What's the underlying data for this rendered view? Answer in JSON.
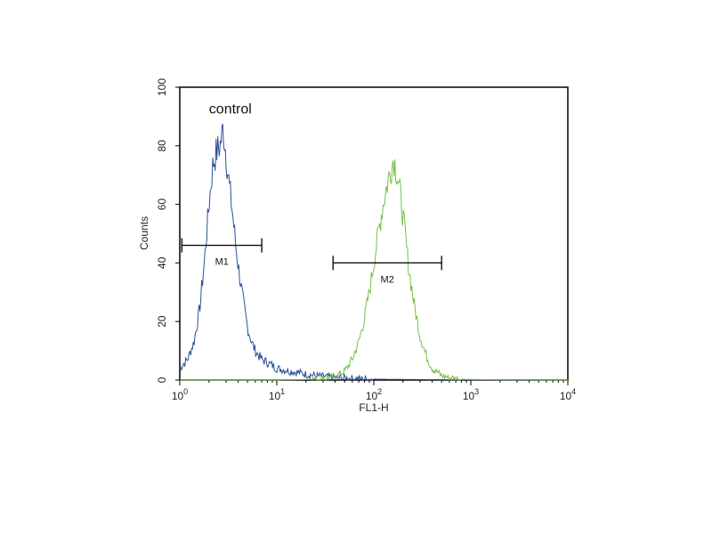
{
  "chart_data": {
    "type": "line",
    "title": "",
    "xlabel": "FL1-H",
    "ylabel": "Counts",
    "x_scale": "log",
    "xlim": [
      1,
      10000
    ],
    "ylim": [
      0,
      100
    ],
    "grid": false,
    "legend": "none",
    "x_tick_labels": [
      {
        "base": "10",
        "exp": "0",
        "value": 1
      },
      {
        "base": "10",
        "exp": "1",
        "value": 10
      },
      {
        "base": "10",
        "exp": "2",
        "value": 100
      },
      {
        "base": "10",
        "exp": "3",
        "value": 1000
      },
      {
        "base": "10",
        "exp": "4",
        "value": 10000
      }
    ],
    "y_ticks": [
      0,
      20,
      40,
      60,
      80,
      100
    ],
    "annotations": [
      {
        "text": "control",
        "x": 2.0,
        "y": 91
      }
    ],
    "series": [
      {
        "color": "#2b4f96",
        "x": [
          1.0,
          1.2,
          1.4,
          1.6,
          1.8,
          2.0,
          2.2,
          2.4,
          2.6,
          2.8,
          3.0,
          3.2,
          3.5,
          3.8,
          4.2,
          4.6,
          5.0,
          5.5,
          6.0,
          7.0,
          8.0,
          9.0,
          10,
          12,
          14,
          17,
          20,
          25,
          30,
          40,
          60,
          100,
          200,
          500,
          1000,
          2000,
          10000
        ],
        "values": [
          4,
          7,
          13,
          24,
          41,
          60,
          74,
          78,
          80,
          86,
          77,
          68,
          57,
          45,
          34,
          25,
          18,
          13,
          10,
          7,
          6,
          5,
          4,
          3.5,
          3,
          2.5,
          2,
          1.5,
          1.2,
          0.8,
          0.5,
          0.3,
          0.2,
          0.1,
          0.1,
          0.1,
          0
        ]
      },
      {
        "color": "#79c04a",
        "x": [
          1.0,
          10,
          20,
          30,
          40,
          50,
          60,
          70,
          80,
          90,
          100,
          110,
          120,
          130,
          140,
          150,
          160,
          175,
          190,
          210,
          230,
          260,
          300,
          350,
          400,
          500,
          600,
          800,
          1000,
          2000,
          10000
        ],
        "values": [
          0,
          0,
          0.2,
          0.5,
          1.2,
          3,
          7,
          13,
          21,
          30,
          40,
          49,
          57,
          63,
          68,
          72,
          76,
          70,
          62,
          50,
          38,
          26,
          15,
          8,
          4,
          1.5,
          0.8,
          0.3,
          0.2,
          0.1,
          0
        ]
      }
    ],
    "markers": [
      {
        "label": "M1",
        "x_start": 1.05,
        "x_end": 7.0,
        "y": 46
      },
      {
        "label": "M2",
        "x_start": 38,
        "x_end": 500,
        "y": 40
      }
    ]
  }
}
